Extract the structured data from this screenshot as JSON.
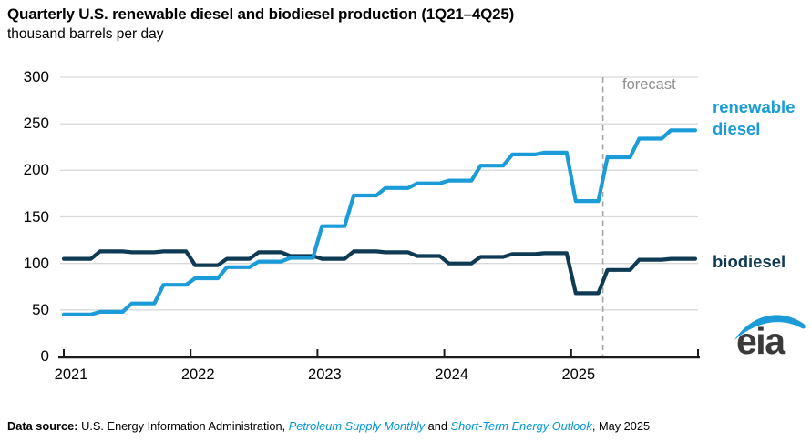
{
  "title": "Quarterly U.S. renewable diesel and biodiesel production (1Q21–4Q25)",
  "subtitle": "thousand barrels per day",
  "forecast_label": "forecast",
  "series_labels": {
    "renewable_line1": "renewable",
    "renewable_line2": "diesel",
    "biodiesel": "biodiesel"
  },
  "logo_text": "eia",
  "footer": {
    "prefix": "Data source:",
    "text1": " U.S. Energy Information Administration, ",
    "link1": "Petroleum Supply Monthly",
    "text2": " and ",
    "link2": "Short-Term Energy Outlook",
    "text3": ", May 2025"
  },
  "colors": {
    "renewable": "#1b9bd8",
    "biodiesel": "#0e3a53",
    "gridline": "#d9d9d9",
    "axis": "#1a1a1a",
    "forecast_line": "#a6a6a6",
    "forecast_text": "#8f8f8f",
    "link": "#0096d7",
    "logo_text": "#3a3a3a",
    "logo_swoosh": "#1b9bd8"
  },
  "chart_data": {
    "type": "line",
    "step": true,
    "title": "Quarterly U.S. renewable diesel and biodiesel production (1Q21–4Q25)",
    "ylabel": "thousand barrels per day",
    "ylim": [
      0,
      300
    ],
    "yticks": [
      0,
      50,
      100,
      150,
      200,
      250,
      300
    ],
    "xticks": [
      "2021",
      "2022",
      "2023",
      "2024",
      "2025"
    ],
    "grid": "horizontal",
    "legend_position": "right-outside",
    "forecast_start_index": 17,
    "categories": [
      "1Q21",
      "2Q21",
      "3Q21",
      "4Q21",
      "1Q22",
      "2Q22",
      "3Q22",
      "4Q22",
      "1Q23",
      "2Q23",
      "3Q23",
      "4Q23",
      "1Q24",
      "2Q24",
      "3Q24",
      "4Q24",
      "1Q25",
      "2Q25",
      "3Q25",
      "4Q25"
    ],
    "series": [
      {
        "name": "renewable diesel",
        "color": "#1b9bd8",
        "values": [
          45,
          48,
          57,
          77,
          84,
          96,
          102,
          106,
          140,
          173,
          181,
          186,
          189,
          205,
          217,
          219,
          167,
          214,
          234,
          243
        ]
      },
      {
        "name": "biodiesel",
        "color": "#0e3a53",
        "values": [
          105,
          113,
          112,
          113,
          98,
          105,
          112,
          108,
          105,
          113,
          112,
          108,
          100,
          107,
          110,
          111,
          68,
          93,
          104,
          105
        ]
      }
    ]
  }
}
